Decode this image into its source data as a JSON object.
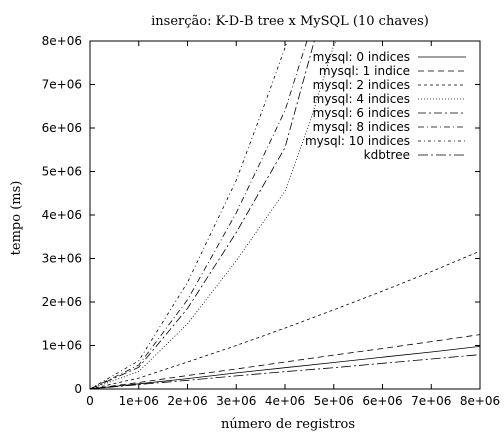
{
  "chart_data": {
    "type": "line",
    "title": "inserção: K-D-B tree x MySQL (10 chaves)",
    "xlabel": "número de registros",
    "ylabel": "tempo (ms)",
    "xlim": [
      0,
      8000000
    ],
    "ylim": [
      0,
      8000000
    ],
    "x_ticks": [
      0,
      1000000,
      2000000,
      3000000,
      4000000,
      5000000,
      6000000,
      7000000,
      8000000
    ],
    "x_tick_labels": [
      "0",
      "1e+06",
      "2e+06",
      "3e+06",
      "4e+06",
      "5e+06",
      "6e+06",
      "7e+06",
      "8e+06"
    ],
    "y_ticks": [
      0,
      1000000,
      2000000,
      3000000,
      4000000,
      5000000,
      6000000,
      7000000,
      8000000
    ],
    "y_tick_labels": [
      "0",
      "1e+06",
      "2e+06",
      "3e+06",
      "4e+06",
      "5e+06",
      "6e+06",
      "7e+06",
      "8e+06"
    ],
    "legend_position": "top-right",
    "grid": false,
    "series": [
      {
        "name": "mysql: 0 indices",
        "dash": "",
        "points": [
          [
            0,
            0
          ],
          [
            1000000,
            120000
          ],
          [
            2000000,
            240000
          ],
          [
            3000000,
            370000
          ],
          [
            4000000,
            490000
          ],
          [
            5000000,
            610000
          ],
          [
            6000000,
            730000
          ],
          [
            7000000,
            850000
          ],
          [
            8000000,
            980000
          ]
        ]
      },
      {
        "name": "mysql: 1 indice",
        "dash": "6,4",
        "points": [
          [
            0,
            0
          ],
          [
            1000000,
            150000
          ],
          [
            2000000,
            310000
          ],
          [
            3000000,
            460000
          ],
          [
            4000000,
            620000
          ],
          [
            5000000,
            780000
          ],
          [
            6000000,
            930000
          ],
          [
            7000000,
            1090000
          ],
          [
            8000000,
            1250000
          ]
        ]
      },
      {
        "name": "mysql: 2 indices",
        "dash": "3,3",
        "points": [
          [
            0,
            0
          ],
          [
            1000000,
            250000
          ],
          [
            2000000,
            620000
          ],
          [
            3000000,
            1000000
          ],
          [
            4000000,
            1400000
          ],
          [
            5000000,
            1820000
          ],
          [
            6000000,
            2250000
          ],
          [
            7000000,
            2700000
          ],
          [
            8000000,
            3170000
          ]
        ]
      },
      {
        "name": "mysql: 4 indices",
        "dash": "1,2",
        "points": [
          [
            0,
            0
          ],
          [
            1000000,
            400000
          ],
          [
            2000000,
            1500000
          ],
          [
            3000000,
            2950000
          ],
          [
            4000000,
            4550000
          ],
          [
            4500000,
            6100000
          ],
          [
            5000000,
            7900000
          ],
          [
            5050000,
            8000000
          ]
        ]
      },
      {
        "name": "mysql: 6 indices",
        "dash": "8,3,2,3",
        "points": [
          [
            0,
            0
          ],
          [
            1000000,
            500000
          ],
          [
            2000000,
            1850000
          ],
          [
            3000000,
            3600000
          ],
          [
            4000000,
            5550000
          ],
          [
            4600000,
            8000000
          ]
        ]
      },
      {
        "name": "mysql: 8 indices",
        "dash": "6,3,1,3",
        "points": [
          [
            0,
            0
          ],
          [
            1000000,
            550000
          ],
          [
            2000000,
            2050000
          ],
          [
            3000000,
            4050000
          ],
          [
            4000000,
            6400000
          ],
          [
            4450000,
            8000000
          ]
        ]
      },
      {
        "name": "mysql: 10 indices",
        "dash": "3,3,1,3",
        "points": [
          [
            0,
            0
          ],
          [
            1000000,
            650000
          ],
          [
            2000000,
            2450000
          ],
          [
            3000000,
            4800000
          ],
          [
            3600000,
            6600000
          ],
          [
            4050000,
            8000000
          ]
        ]
      },
      {
        "name": "kdbtree",
        "dash": "10,3,2,3",
        "points": [
          [
            0,
            0
          ],
          [
            1000000,
            100000
          ],
          [
            2000000,
            200000
          ],
          [
            3000000,
            300000
          ],
          [
            4000000,
            400000
          ],
          [
            5000000,
            490000
          ],
          [
            6000000,
            590000
          ],
          [
            7000000,
            690000
          ],
          [
            8000000,
            790000
          ]
        ]
      }
    ]
  }
}
